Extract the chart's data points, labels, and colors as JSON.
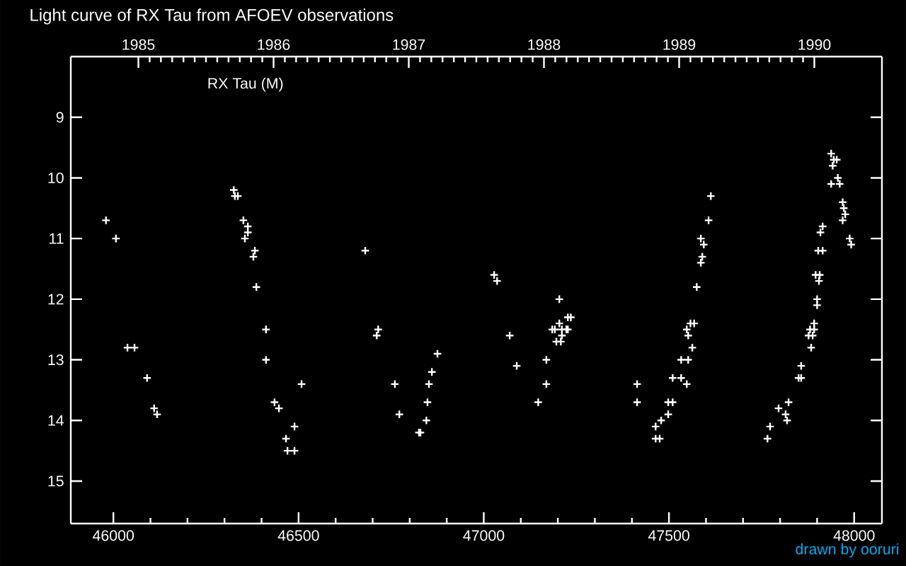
{
  "chart_data": {
    "type": "scatter",
    "title": "Light curve of RX Tau from AFOEV observations",
    "annotations": [
      "RX Tau (M)",
      "drawn by ooruri"
    ],
    "x": [
      45980,
      46007,
      46038,
      46057,
      46091,
      46110,
      46118,
      46325,
      46328,
      46336,
      46351,
      46363,
      46363,
      46355,
      46382,
      46378,
      46386,
      46412,
      46412,
      46508,
      46435,
      46447,
      46489,
      46466,
      46470,
      46489,
      46680,
      46715,
      46711,
      46760,
      46772,
      46875,
      46860,
      46852,
      46848,
      46845,
      46825,
      46829,
      47028,
      47036,
      47070,
      47089,
      47147,
      47169,
      47169,
      47204,
      47227,
      47235,
      47204,
      47185,
      47192,
      47211,
      47223,
      47227,
      47211,
      47196,
      47208,
      47414,
      47414,
      47464,
      47479,
      47498,
      47498,
      47510,
      47464,
      47475,
      47510,
      47533,
      47548,
      47533,
      47552,
      47563,
      47548,
      47552,
      47558,
      47568,
      47575,
      47590,
      47586,
      47586,
      47594,
      47607,
      47613,
      47766,
      47773,
      47796,
      47815,
      47819,
      47823,
      47850,
      47857,
      47857,
      47884,
      47877,
      47888,
      47881,
      47892,
      47892,
      47900,
      47900,
      47905,
      47896,
      47907,
      47903,
      47915,
      47909,
      47915,
      47938,
      47945,
      47953,
      47942,
      47956,
      47938,
      47961,
      47969,
      47972,
      47976,
      47969,
      47988,
      47992
    ],
    "values": [
      10.7,
      11.0,
      12.8,
      12.8,
      13.3,
      13.8,
      13.9,
      10.2,
      10.3,
      10.3,
      10.7,
      10.8,
      10.9,
      11.0,
      11.2,
      11.3,
      11.8,
      12.5,
      13.0,
      13.4,
      13.7,
      13.8,
      14.1,
      14.3,
      14.5,
      14.5,
      11.2,
      12.5,
      12.6,
      13.4,
      13.9,
      12.9,
      13.2,
      13.4,
      13.7,
      14.0,
      14.2,
      14.2,
      11.6,
      11.7,
      12.6,
      13.1,
      13.7,
      13.0,
      13.4,
      12.0,
      12.3,
      12.3,
      12.4,
      12.5,
      12.5,
      12.5,
      12.5,
      12.5,
      12.6,
      12.7,
      12.7,
      13.4,
      13.7,
      14.1,
      14.0,
      13.9,
      13.7,
      13.7,
      14.3,
      14.3,
      13.3,
      13.3,
      13.4,
      13.0,
      13.0,
      12.8,
      12.5,
      12.6,
      12.4,
      12.4,
      11.8,
      11.3,
      11.4,
      11.0,
      11.1,
      10.7,
      10.3,
      14.3,
      14.1,
      13.8,
      13.9,
      14.0,
      13.7,
      13.3,
      13.3,
      13.1,
      12.8,
      12.6,
      12.6,
      12.5,
      12.5,
      12.4,
      12.1,
      12.0,
      11.7,
      11.6,
      11.6,
      11.2,
      11.2,
      10.9,
      10.8,
      9.6,
      9.7,
      9.7,
      9.8,
      10.0,
      10.1,
      10.1,
      10.4,
      10.5,
      10.6,
      10.7,
      11.0,
      11.1
    ],
    "color": "#ffffff",
    "marker": "cross",
    "grid": false,
    "xlim": [
      45885,
      48075
    ],
    "xticks": [
      46000,
      46500,
      47000,
      47500,
      48000
    ],
    "ylim": [
      15.7,
      8
    ],
    "yticks": [
      9,
      10,
      11,
      12,
      13,
      14,
      15
    ],
    "x2lim": [
      1984.5,
      1990.5
    ],
    "x2ticks": [
      1985,
      1986,
      1987,
      1988,
      1989,
      1990
    ]
  }
}
